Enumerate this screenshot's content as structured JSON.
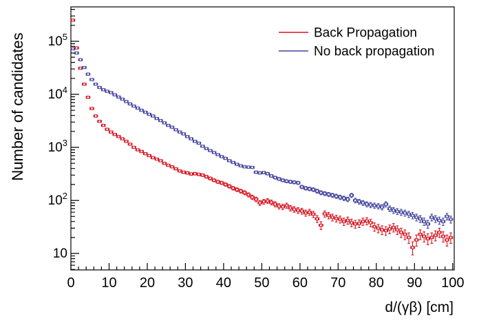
{
  "chart_data": {
    "type": "scatter",
    "subtype": "errorbar-histogram",
    "title": "",
    "xlabel": "d/(γβ) [cm]",
    "ylabel": "Number of candidates",
    "y_scale": "log",
    "grid": false,
    "xlim": [
      0,
      100.4
    ],
    "ylim": [
      4.9,
      445000
    ],
    "x_ticks": [
      0,
      10,
      20,
      30,
      40,
      50,
      60,
      70,
      80,
      90,
      100
    ],
    "x_tick_labels": [
      "0",
      "10",
      "20",
      "30",
      "40",
      "50",
      "60",
      "70",
      "80",
      "90",
      "100"
    ],
    "x_minor_step": 2,
    "y_ticks": [
      {
        "value": 10,
        "label": "10",
        "exp": ""
      },
      {
        "value": 100,
        "label": "10",
        "exp": "2"
      },
      {
        "value": 1000,
        "label": "10",
        "exp": "3"
      },
      {
        "value": 10000,
        "label": "10",
        "exp": "4"
      },
      {
        "value": 100000,
        "label": "10",
        "exp": "5"
      }
    ],
    "bins": {
      "start": 0,
      "width": 1,
      "count": 100
    },
    "legend_position": "top-right",
    "frame_color": "#000000",
    "background_color": "#ffffff",
    "series": [
      {
        "name": "Back Propagation",
        "color": "#d8101d",
        "errors": "sqrt(N)",
        "y": [
          250000,
          75000,
          31000,
          15500,
          8800,
          5400,
          3900,
          3100,
          2600,
          2200,
          1950,
          1750,
          1600,
          1450,
          1300,
          1150,
          1000,
          900,
          840,
          760,
          700,
          640,
          600,
          560,
          500,
          460,
          430,
          395,
          360,
          340,
          330,
          315,
          320,
          310,
          300,
          280,
          260,
          240,
          225,
          215,
          200,
          185,
          170,
          160,
          150,
          140,
          128,
          115,
          105,
          90,
          95,
          98,
          92,
          85,
          78,
          76,
          80,
          72,
          68,
          65,
          63,
          58,
          60,
          55,
          45,
          34,
          56,
          52,
          48,
          46,
          44,
          40,
          42,
          38,
          36,
          37,
          40,
          41,
          38,
          32,
          30,
          28,
          27,
          29,
          31,
          28,
          25,
          23,
          20,
          13,
          18,
          23,
          21,
          19,
          20,
          22,
          25,
          21,
          18,
          20
        ]
      },
      {
        "name": "No back propagation",
        "color": "#41419e",
        "errors": "sqrt(N)",
        "y": [
          72000,
          60000,
          45000,
          32000,
          24000,
          19000,
          15500,
          13500,
          12200,
          11400,
          10800,
          9800,
          8900,
          8100,
          7300,
          6600,
          6000,
          5500,
          5000,
          4600,
          4200,
          3900,
          3500,
          3200,
          2900,
          2600,
          2400,
          2150,
          1950,
          1800,
          1600,
          1450,
          1300,
          1200,
          1050,
          950,
          870,
          800,
          730,
          670,
          620,
          560,
          520,
          480,
          450,
          430,
          425,
          420,
          340,
          330,
          335,
          320,
          290,
          270,
          255,
          240,
          230,
          225,
          220,
          215,
          180,
          170,
          165,
          160,
          150,
          140,
          135,
          130,
          125,
          120,
          115,
          110,
          105,
          125,
          100,
          95,
          90,
          85,
          82,
          80,
          78,
          75,
          85,
          70,
          65,
          62,
          60,
          58,
          55,
          52,
          48,
          45,
          40,
          36,
          48,
          45,
          42,
          40,
          50,
          44
        ]
      }
    ]
  }
}
